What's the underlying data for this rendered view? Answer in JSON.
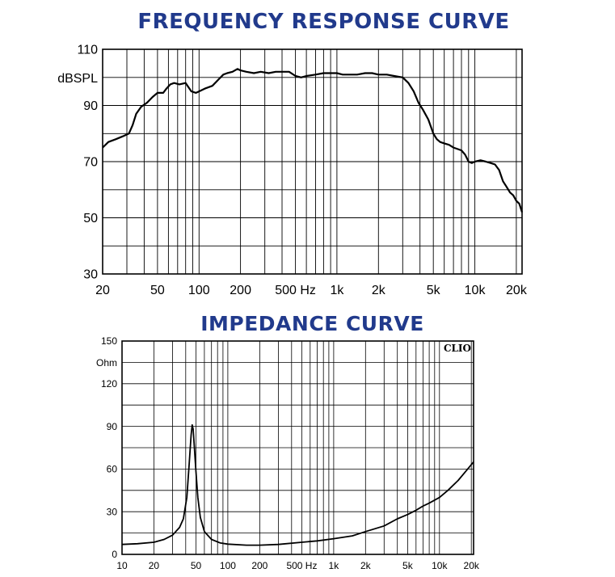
{
  "chart_data": [
    {
      "type": "line",
      "title": "FREQUENCY RESPONSE CURVE",
      "ylabel": "dBSPL",
      "xlabel": "",
      "xscale": "log",
      "xlim": [
        20,
        22000
      ],
      "ylim": [
        30,
        110
      ],
      "yticks": [
        30,
        50,
        70,
        90,
        110
      ],
      "yticklabels": [
        "30",
        "50",
        "70",
        "90",
        "110"
      ],
      "xticks": [
        20,
        50,
        100,
        200,
        500,
        1000,
        2000,
        5000,
        10000,
        20000
      ],
      "xticklabels": [
        "20",
        "50",
        "100",
        "200",
        "500 Hz",
        "1k",
        "2k",
        "5k",
        "10k",
        "20k"
      ],
      "grid": true,
      "colors": {
        "line": "#000000",
        "title": "#213a8c",
        "grid": "#000000"
      },
      "series": [
        {
          "x": [
            20,
            22,
            25,
            28,
            31,
            33,
            35,
            38,
            42,
            46,
            50,
            55,
            58,
            62,
            66,
            72,
            80,
            88,
            95,
            100,
            110,
            125,
            140,
            150,
            160,
            175,
            190,
            200,
            220,
            250,
            280,
            320,
            360,
            400,
            450,
            500,
            550,
            600,
            700,
            800,
            900,
            1000,
            1100,
            1250,
            1400,
            1600,
            1800,
            2000,
            2300,
            2600,
            3000,
            3300,
            3600,
            3900,
            4200,
            4600,
            5000,
            5300,
            5600,
            6000,
            6500,
            7000,
            7500,
            8000,
            8500,
            9000,
            9500,
            10000,
            11000,
            12000,
            13000,
            14000,
            15000,
            16000,
            17000,
            18000,
            19000,
            20000,
            21000,
            22000
          ],
          "y": [
            75,
            77,
            78,
            79,
            80,
            83,
            87,
            89.5,
            91,
            93,
            94.5,
            94.5,
            96,
            97.5,
            98,
            97.5,
            98,
            95,
            94.5,
            95,
            96,
            97,
            99.5,
            101,
            101.5,
            102,
            103,
            102.5,
            102,
            101.5,
            102,
            101.5,
            102,
            102,
            102,
            100.5,
            100,
            100.5,
            101,
            101.5,
            101.5,
            101.5,
            101,
            101,
            101,
            101.5,
            101.5,
            101,
            101,
            100.5,
            100,
            98,
            95,
            91,
            88.5,
            85,
            80,
            78,
            77,
            76.5,
            76,
            75,
            74.5,
            74,
            72.5,
            70,
            69.5,
            70,
            70.5,
            70,
            69.5,
            69,
            67,
            63,
            61,
            59,
            58,
            56,
            55,
            52
          ]
        }
      ]
    },
    {
      "type": "line",
      "title": "IMPEDANCE CURVE",
      "ylabel": "Ohm",
      "xlabel": "",
      "xscale": "log",
      "xlim": [
        10,
        21000
      ],
      "ylim": [
        0,
        150
      ],
      "yticks": [
        0,
        30,
        60,
        90,
        120,
        150
      ],
      "yticklabels": [
        "0",
        "30",
        "60",
        "90",
        "120",
        "150"
      ],
      "xticks": [
        10,
        20,
        50,
        100,
        200,
        500,
        1000,
        2000,
        5000,
        10000,
        20000
      ],
      "xticklabels": [
        "10",
        "20",
        "50",
        "100",
        "200",
        "500 Hz",
        "1k",
        "2k",
        "5k",
        "10k",
        "20k"
      ],
      "annotation": "CLIO",
      "grid": true,
      "colors": {
        "line": "#000000",
        "title": "#213a8c",
        "grid": "#000000"
      },
      "series": [
        {
          "x": [
            10,
            14,
            20,
            25,
            30,
            35,
            38,
            41,
            43,
            45,
            46,
            47,
            48,
            50,
            52,
            55,
            60,
            70,
            85,
            100,
            150,
            200,
            300,
            500,
            700,
            1000,
            1500,
            2000,
            3000,
            4000,
            5000,
            6000,
            7000,
            8000,
            10000,
            12000,
            15000,
            18000,
            21000
          ],
          "y": [
            7,
            7.5,
            8.5,
            10.5,
            13.5,
            19,
            25,
            40,
            62,
            84,
            91,
            88,
            78,
            58,
            40,
            26,
            16,
            10.5,
            8,
            7.2,
            6.5,
            6.5,
            7,
            8.5,
            9.5,
            11,
            13,
            16,
            20,
            25,
            28,
            31,
            34,
            36,
            40,
            45,
            52,
            59,
            65
          ]
        }
      ]
    }
  ]
}
